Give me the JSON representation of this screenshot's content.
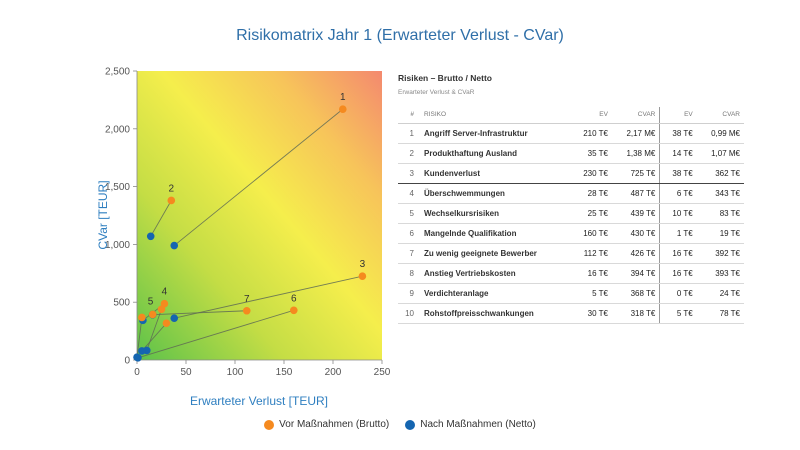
{
  "title": "Risikomatrix Jahr 1 (Erwarteter Verlust - CVar)",
  "colors": {
    "title": "#2f6fa8",
    "brutto": "#f58a1f",
    "netto": "#1565b0",
    "axis_label": "#2f7fc0"
  },
  "chart_data": {
    "type": "scatter",
    "xlabel": "Erwarteter Verlust [TEUR]",
    "ylabel": "CVar [TEUR]",
    "xlim": [
      0,
      250
    ],
    "ylim": [
      0,
      2500
    ],
    "x_ticks": [
      "0",
      "50",
      "100",
      "150",
      "200",
      "250"
    ],
    "y_ticks": [
      "0",
      "500",
      "1,000",
      "1,500",
      "2,000",
      "2,500"
    ],
    "background": "gradient green (bottom-left) to yellow to red (top-right)",
    "series": [
      {
        "name": "Vor Maßnahmen (Brutto)",
        "color": "#f58a1f",
        "points": [
          {
            "id": "1",
            "x": 210,
            "y": 2170
          },
          {
            "id": "2",
            "x": 35,
            "y": 1380
          },
          {
            "id": "3",
            "x": 230,
            "y": 725
          },
          {
            "id": "4",
            "x": 28,
            "y": 487
          },
          {
            "id": "5",
            "x": 25,
            "y": 439
          },
          {
            "id": "6",
            "x": 160,
            "y": 430
          },
          {
            "id": "7",
            "x": 112,
            "y": 426
          },
          {
            "id": "8",
            "x": 16,
            "y": 394
          },
          {
            "id": "9",
            "x": 5,
            "y": 368
          },
          {
            "id": "10",
            "x": 30,
            "y": 318
          }
        ]
      },
      {
        "name": "Nach Maßnahmen (Netto)",
        "color": "#1565b0",
        "points": [
          {
            "id": "1",
            "x": 38,
            "y": 990
          },
          {
            "id": "2",
            "x": 14,
            "y": 1070
          },
          {
            "id": "3",
            "x": 38,
            "y": 362
          },
          {
            "id": "4",
            "x": 6,
            "y": 343
          },
          {
            "id": "5",
            "x": 10,
            "y": 83
          },
          {
            "id": "6",
            "x": 1,
            "y": 19
          },
          {
            "id": "7",
            "x": 16,
            "y": 392
          },
          {
            "id": "8",
            "x": 16,
            "y": 393
          },
          {
            "id": "9",
            "x": 0,
            "y": 24
          },
          {
            "id": "10",
            "x": 5,
            "y": 78
          }
        ]
      }
    ],
    "point_labels": [
      "1",
      "2",
      "3",
      "4",
      "5",
      "6",
      "7"
    ]
  },
  "legend": [
    {
      "label": "Vor Maßnahmen (Brutto)",
      "color": "#f58a1f"
    },
    {
      "label": "Nach Maßnahmen (Netto)",
      "color": "#1565b0"
    }
  ],
  "panel": {
    "title": "Risiken – Brutto / Netto",
    "subtitle": "Erwarteter Verlust & CVaR",
    "headers": [
      "#",
      "RISIKO",
      "EV",
      "CVAR",
      "EV",
      "CVAR"
    ],
    "rows": [
      [
        "1",
        "Angriff Server-Infrastruktur",
        "210 T€",
        "2,17 M€",
        "38 T€",
        "0,99 M€"
      ],
      [
        "2",
        "Produkthaftung Ausland",
        "35 T€",
        "1,38 M€",
        "14 T€",
        "1,07 M€"
      ],
      [
        "3",
        "Kundenverlust",
        "230 T€",
        "725 T€",
        "38 T€",
        "362 T€"
      ],
      [
        "4",
        "Überschwemmungen",
        "28 T€",
        "487 T€",
        "6 T€",
        "343 T€"
      ],
      [
        "5",
        "Wechselkursrisiken",
        "25 T€",
        "439 T€",
        "10 T€",
        "83 T€"
      ],
      [
        "6",
        "Mangelnde Qualifikation",
        "160 T€",
        "430 T€",
        "1 T€",
        "19 T€"
      ],
      [
        "7",
        "Zu wenig geeignete Bewerber",
        "112 T€",
        "426 T€",
        "16 T€",
        "392 T€"
      ],
      [
        "8",
        "Anstieg Vertriebskosten",
        "16 T€",
        "394 T€",
        "16 T€",
        "393 T€"
      ],
      [
        "9",
        "Verdichteranlage",
        "5 T€",
        "368 T€",
        "0 T€",
        "24 T€"
      ],
      [
        "10",
        "Rohstoffpreisschwankungen",
        "30 T€",
        "318 T€",
        "5 T€",
        "78 T€"
      ]
    ]
  }
}
